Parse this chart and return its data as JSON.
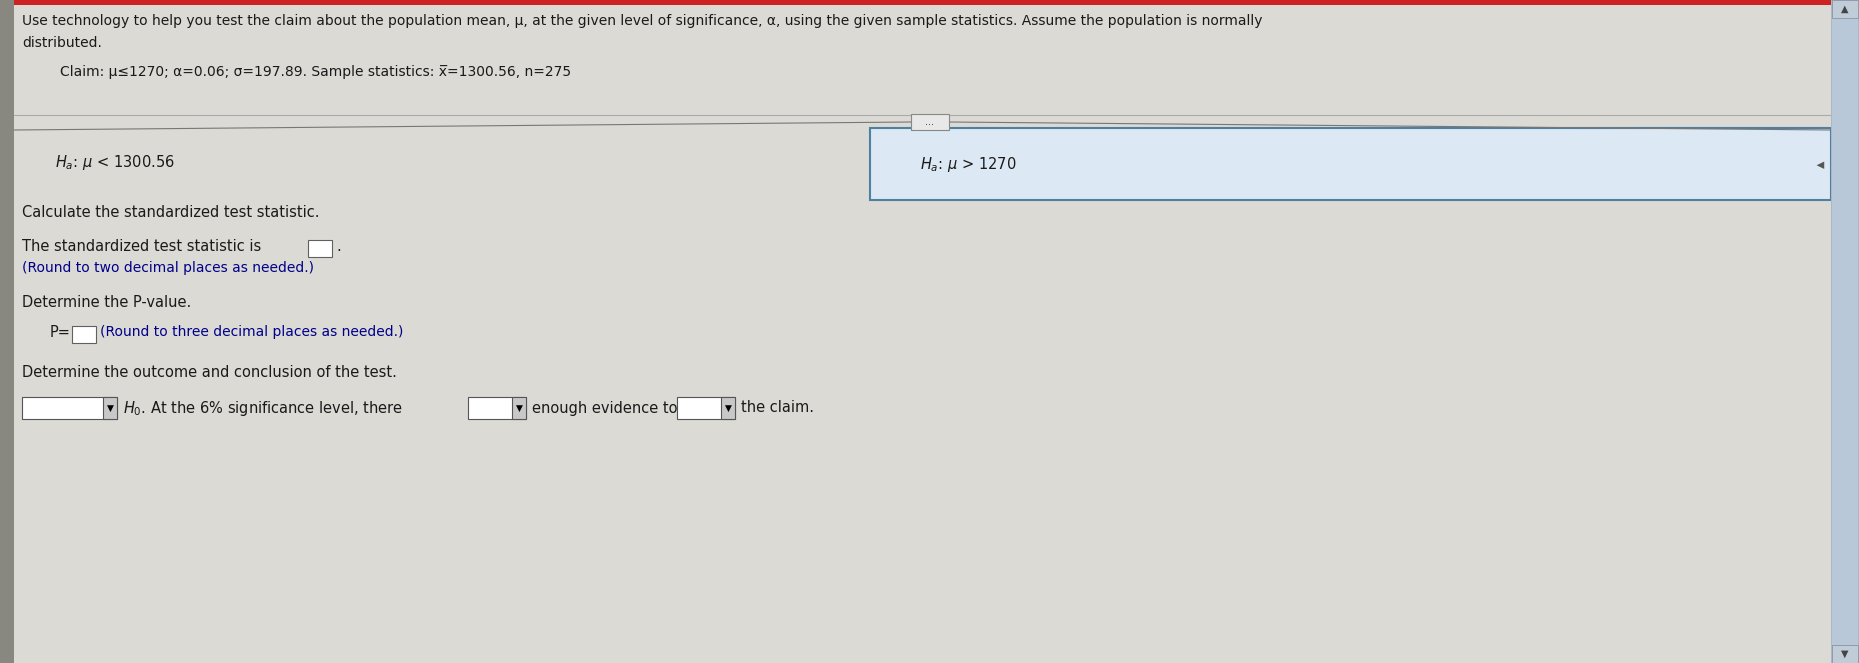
{
  "bg_color": "#c8c8c8",
  "white_bg": "#ffffff",
  "content_bg": "#e0ddd8",
  "text_color": "#1a1a1a",
  "blue_text_color": "#00008B",
  "header_text_line1": "Use technology to help you test the claim about the population mean, μ, at the given level of significance, α, using the given sample statistics. Assume the population is normally",
  "header_text_line2": "distributed.",
  "claim_text": "Claim: μ≤1270; α=0.06; σ=197.89. Sample statistics: x̅=1300.56, n=275",
  "ha_left": "Hₐ: μ< 1300.56",
  "ha_right": "Hₐ: μ> 1270",
  "calc_heading": "Calculate the standardized test statistic.",
  "stat_text_1": "The standardized test statistic is",
  "stat_text_2": ".",
  "round_note_1": "(Round to two decimal places as needed.)",
  "p_heading": "Determine the P-value.",
  "p_text": "P=",
  "p_round_note": "(Round to three decimal places as needed.)",
  "outcome_heading": "Determine the outcome and conclusion of the test.",
  "outcome_text_mid": ". At the 6% significance level, there",
  "outcome_text_3": "enough evidence to",
  "outcome_text_4": "the claim.",
  "divider_color": "#888888",
  "right_panel_fill": "#dce8f4",
  "right_panel_edge": "#5080a0",
  "scrollbar_bg": "#a8b8c8",
  "scrollbar_btn": "#c0ccd8",
  "left_stripe": "#888880",
  "top_stripe": "#cc2222"
}
